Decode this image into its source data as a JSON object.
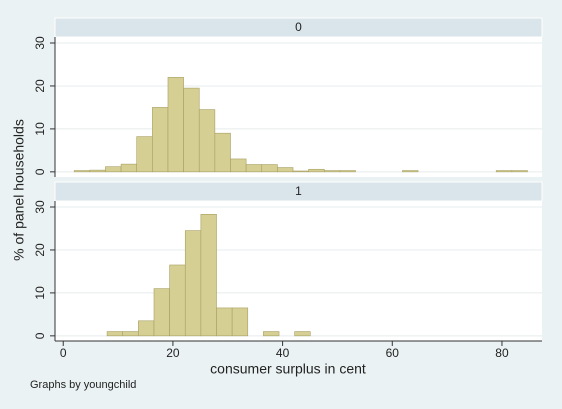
{
  "chart_data": [
    {
      "type": "histogram",
      "title": "0",
      "bins": [
        2,
        4.85,
        7.7,
        10.55,
        13.4,
        16.25,
        19.1,
        21.95,
        24.8,
        27.65,
        30.5,
        33.35,
        36.2,
        39.05,
        41.9,
        44.75,
        47.6,
        50.45,
        53.3,
        56.15,
        59,
        61.85,
        64.7,
        67.55,
        70.4,
        73.25,
        76.1,
        78.95,
        81.8,
        84.65
      ],
      "values": [
        0.3,
        0.4,
        1.2,
        1.8,
        8.2,
        15,
        22,
        19.5,
        14.5,
        9,
        3,
        1.7,
        1.7,
        1,
        0.2,
        0.6,
        0.3,
        0.3,
        0,
        0,
        0,
        0.3,
        0,
        0,
        0,
        0,
        0,
        0.3,
        0.3
      ],
      "color": "#d6cf94",
      "xlim": [
        -1.5,
        87.3
      ],
      "xticks": [
        0,
        20,
        40,
        60,
        80
      ],
      "ylim": [
        -1.2,
        31.4
      ],
      "yticks": [
        0,
        10,
        20,
        30
      ],
      "grid": true
    },
    {
      "type": "histogram",
      "title": "1",
      "bins": [
        8,
        10.85,
        13.7,
        16.55,
        19.4,
        22.25,
        25.1,
        27.95,
        30.8,
        33.65,
        36.5,
        39.35,
        42.2,
        45.05
      ],
      "values": [
        1,
        1,
        3.5,
        11,
        16.5,
        24.5,
        28.3,
        6.5,
        6.5,
        0,
        1,
        0,
        1
      ],
      "color": "#d6cf94",
      "xlim": [
        -1.5,
        87.3
      ],
      "xticks": [
        0,
        20,
        40,
        60,
        80
      ],
      "ylim": [
        -1.2,
        31.4
      ],
      "yticks": [
        0,
        10,
        20,
        30
      ],
      "grid": true
    }
  ],
  "xlabel": "consumer surplus in cent",
  "ylabel": "% of panel households",
  "note": "Graphs by youngchild"
}
